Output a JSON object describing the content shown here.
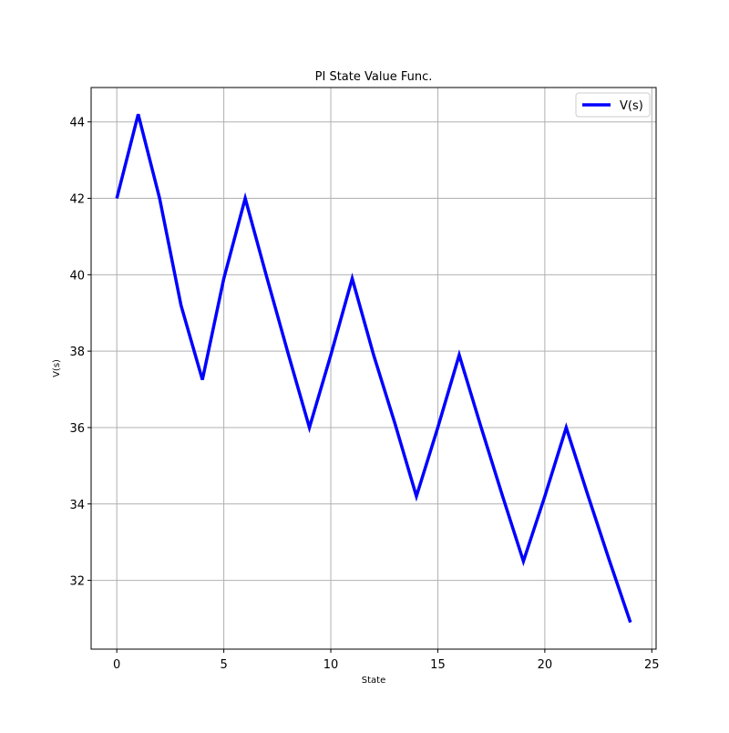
{
  "chart_data": {
    "type": "line",
    "title": "PI State Value Func.",
    "xlabel": "State",
    "ylabel": "V(s)",
    "xlim": [
      -1.2,
      25.2
    ],
    "ylim": [
      30.2,
      44.9
    ],
    "xticks": [
      0,
      5,
      10,
      15,
      20,
      25
    ],
    "yticks": [
      32,
      34,
      36,
      38,
      40,
      42,
      44
    ],
    "grid": true,
    "legend_position": "upper right",
    "series": [
      {
        "name": "V(s)",
        "color": "#0000ff",
        "x": [
          0,
          1,
          2,
          3,
          4,
          5,
          6,
          7,
          8,
          9,
          10,
          11,
          12,
          13,
          14,
          15,
          16,
          17,
          18,
          19,
          20,
          21,
          22,
          23,
          24
        ],
        "y": [
          42.0,
          44.2,
          42.0,
          39.2,
          37.25,
          39.9,
          42.0,
          39.95,
          37.95,
          36.0,
          37.9,
          39.9,
          37.9,
          36.1,
          34.2,
          36.0,
          37.9,
          36.05,
          34.25,
          32.5,
          34.2,
          36.0,
          34.25,
          32.55,
          30.9
        ]
      }
    ]
  }
}
